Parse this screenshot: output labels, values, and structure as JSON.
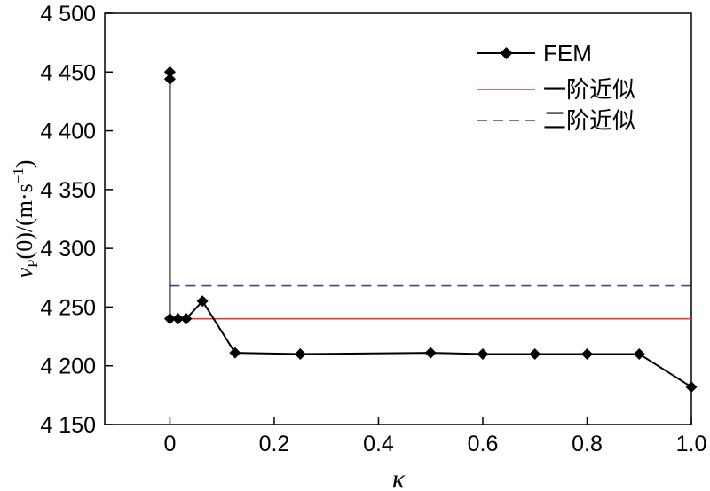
{
  "chart_data": {
    "type": "line",
    "xlabel": "κ",
    "ylabel": {
      "var": "v",
      "sub": "P",
      "rest": "(0)/(m·s",
      "sup": "−1",
      "close": ")"
    },
    "xlim": [
      -0.125,
      1.0
    ],
    "ylim": [
      4150,
      4500
    ],
    "xticks": [
      0,
      0.2,
      0.4,
      0.6,
      0.8,
      1.0
    ],
    "xtick_labels": [
      "0",
      "0.2",
      "0.4",
      "0.6",
      "0.8",
      "1.0"
    ],
    "yticks": [
      4150,
      4200,
      4250,
      4300,
      4350,
      4400,
      4450,
      4500
    ],
    "ytick_labels": [
      "4 150",
      "4 200",
      "4 250",
      "4 300",
      "4 350",
      "4 400",
      "4 450",
      "4 500"
    ],
    "grid": false,
    "legend_position": "top-right",
    "series": [
      {
        "name": "FEM",
        "style": "line-diamond",
        "color": "#000000",
        "x": [
          0.0,
          0.0,
          0.0,
          0.0156,
          0.03125,
          0.0625,
          0.125,
          0.25,
          0.5,
          0.6,
          0.7,
          0.8,
          0.9,
          1.0
        ],
        "y": [
          4450,
          4444,
          4240,
          4240,
          4240,
          4255,
          4211,
          4210,
          4211,
          4210,
          4210,
          4210,
          4210,
          4182
        ]
      },
      {
        "name": "一阶近似",
        "style": "solid",
        "color": "#e8372c",
        "x": [
          0.0,
          1.0
        ],
        "y": [
          4240,
          4240
        ]
      },
      {
        "name": "二阶近似",
        "style": "dashed",
        "color": "#3a4a8c",
        "x": [
          0.0,
          1.0
        ],
        "y": [
          4268,
          4268
        ]
      }
    ]
  }
}
